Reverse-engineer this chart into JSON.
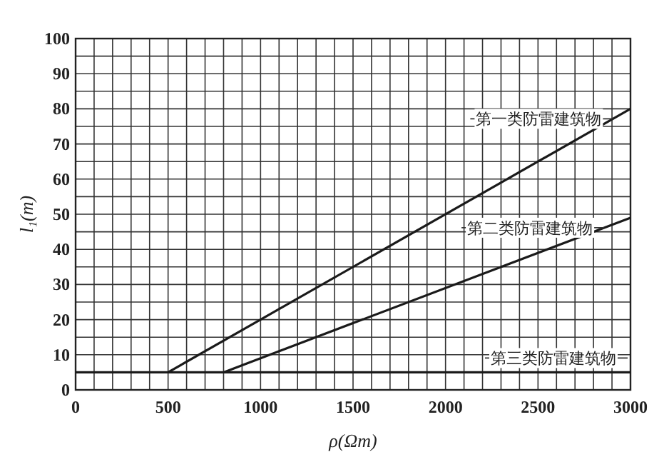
{
  "chart_data": {
    "type": "line",
    "xlabel": "ρ(Ωm)",
    "ylabel": "l₁(m)",
    "xlim": [
      0,
      3000
    ],
    "ylim": [
      0,
      100
    ],
    "xticks": [
      0,
      500,
      1000,
      1500,
      2000,
      2500,
      3000
    ],
    "yticks": [
      0,
      10,
      20,
      30,
      40,
      50,
      60,
      70,
      80,
      90,
      100
    ],
    "grid": true,
    "marker": "none",
    "line_style": "solid",
    "series": [
      {
        "name": "第一类防雷建筑物",
        "color": "#1a1a1a",
        "x": [
          500,
          3000
        ],
        "values": [
          5,
          80
        ]
      },
      {
        "name": "第二类防雷建筑物",
        "color": "#1a1a1a",
        "x": [
          800,
          3000
        ],
        "values": [
          5,
          49
        ]
      },
      {
        "name": "第三类防雷建筑物",
        "color": "#1a1a1a",
        "x": [
          0,
          3000
        ],
        "values": [
          5,
          5
        ]
      }
    ]
  }
}
